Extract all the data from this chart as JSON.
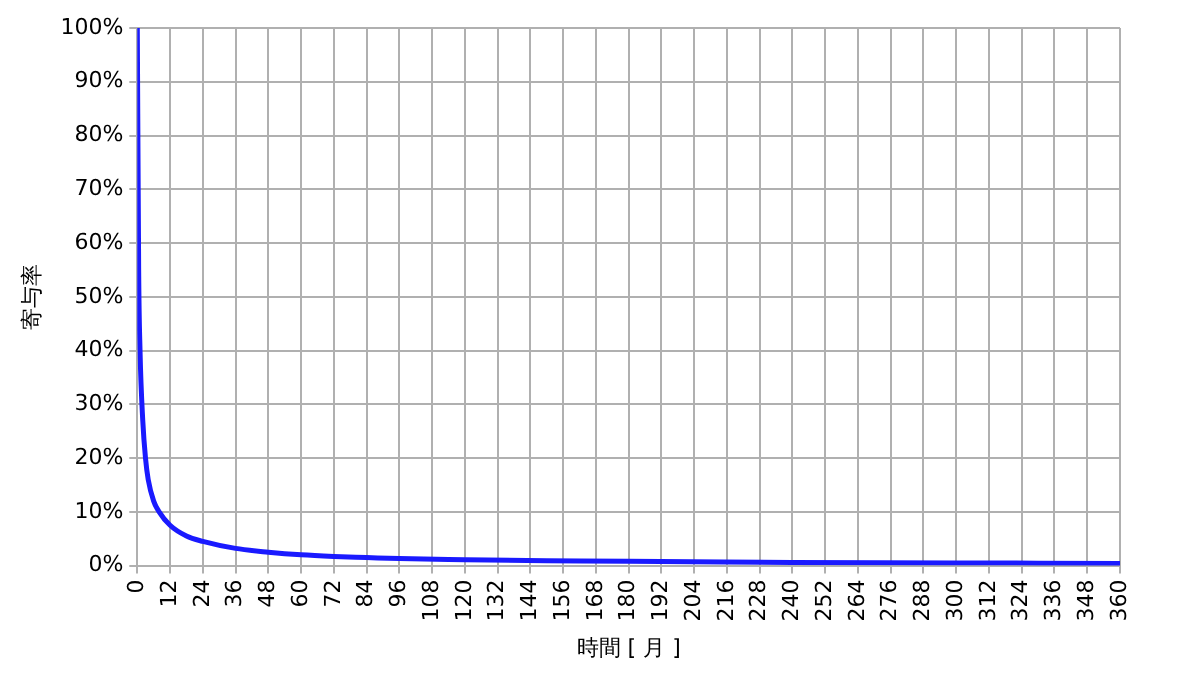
{
  "chart_data": {
    "type": "line",
    "xlabel": "時間 [ 月 ]",
    "ylabel": "寄与率",
    "x": [
      0,
      0.5,
      1,
      2,
      3,
      4,
      6,
      8,
      12,
      18,
      24,
      36,
      48,
      60,
      72,
      84,
      96,
      120,
      150,
      180,
      240,
      300,
      360
    ],
    "series": [
      {
        "color": "#1a1aff",
        "values": [
          100,
          55,
          40,
          27,
          20,
          16,
          12,
          10,
          7.5,
          5.5,
          4.5,
          3.2,
          2.5,
          2,
          1.7,
          1.5,
          1.3,
          1.1,
          0.9,
          0.8,
          0.6,
          0.5,
          0.4
        ]
      }
    ],
    "xlim": [
      0,
      360
    ],
    "xticks": [
      0,
      12,
      24,
      36,
      48,
      60,
      72,
      84,
      96,
      108,
      120,
      132,
      144,
      156,
      168,
      180,
      192,
      204,
      216,
      228,
      240,
      252,
      264,
      276,
      288,
      300,
      312,
      324,
      336,
      348,
      360
    ],
    "ylim": [
      0,
      100
    ],
    "yticks": [
      {
        "value": 0,
        "label": "0%"
      },
      {
        "value": 10,
        "label": "10%"
      },
      {
        "value": 20,
        "label": "20%"
      },
      {
        "value": 30,
        "label": "30%"
      },
      {
        "value": 40,
        "label": "40%"
      },
      {
        "value": 50,
        "label": "50%"
      },
      {
        "value": 60,
        "label": "60%"
      },
      {
        "value": 70,
        "label": "70%"
      },
      {
        "value": 80,
        "label": "80%"
      },
      {
        "value": 90,
        "label": "90%"
      },
      {
        "value": 100,
        "label": "100%"
      }
    ],
    "grid": true,
    "legend": false,
    "marker": "none",
    "line_style": "solid"
  }
}
